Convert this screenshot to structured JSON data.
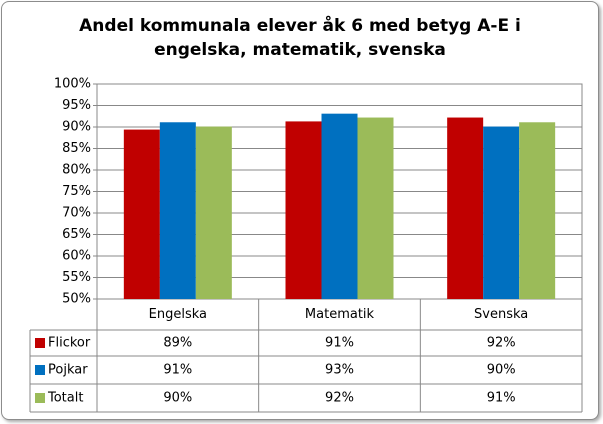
{
  "chart_data": {
    "type": "bar",
    "title": "Andel kommunala elever åk 6 med betyg A-E i engelska, matematik, svenska",
    "categories": [
      "Engelska",
      "Matematik",
      "Svenska"
    ],
    "series": [
      {
        "name": "Flickor",
        "color": "#c00000",
        "values": [
          89.4,
          91.3,
          92.2
        ],
        "value_labels": [
          "89%",
          "91%",
          "92%"
        ]
      },
      {
        "name": "Pojkar",
        "color": "#0070c0",
        "values": [
          91.1,
          93.1,
          90.1
        ],
        "value_labels": [
          "91%",
          "93%",
          "90%"
        ]
      },
      {
        "name": "Totalt",
        "color": "#9bbb59",
        "values": [
          90.1,
          92.2,
          91.1
        ],
        "value_labels": [
          "90%",
          "92%",
          "91%"
        ]
      }
    ],
    "ylim": [
      50,
      100
    ],
    "yticks": [
      {
        "value": 50,
        "label": "50%"
      },
      {
        "value": 55,
        "label": "55%"
      },
      {
        "value": 60,
        "label": "60%"
      },
      {
        "value": 65,
        "label": "65%"
      },
      {
        "value": 70,
        "label": "70%"
      },
      {
        "value": 75,
        "label": "75%"
      },
      {
        "value": 80,
        "label": "80%"
      },
      {
        "value": 85,
        "label": "85%"
      },
      {
        "value": 90,
        "label": "90%"
      },
      {
        "value": 95,
        "label": "95%"
      },
      {
        "value": 100,
        "label": "100%"
      }
    ],
    "grid": true
  }
}
